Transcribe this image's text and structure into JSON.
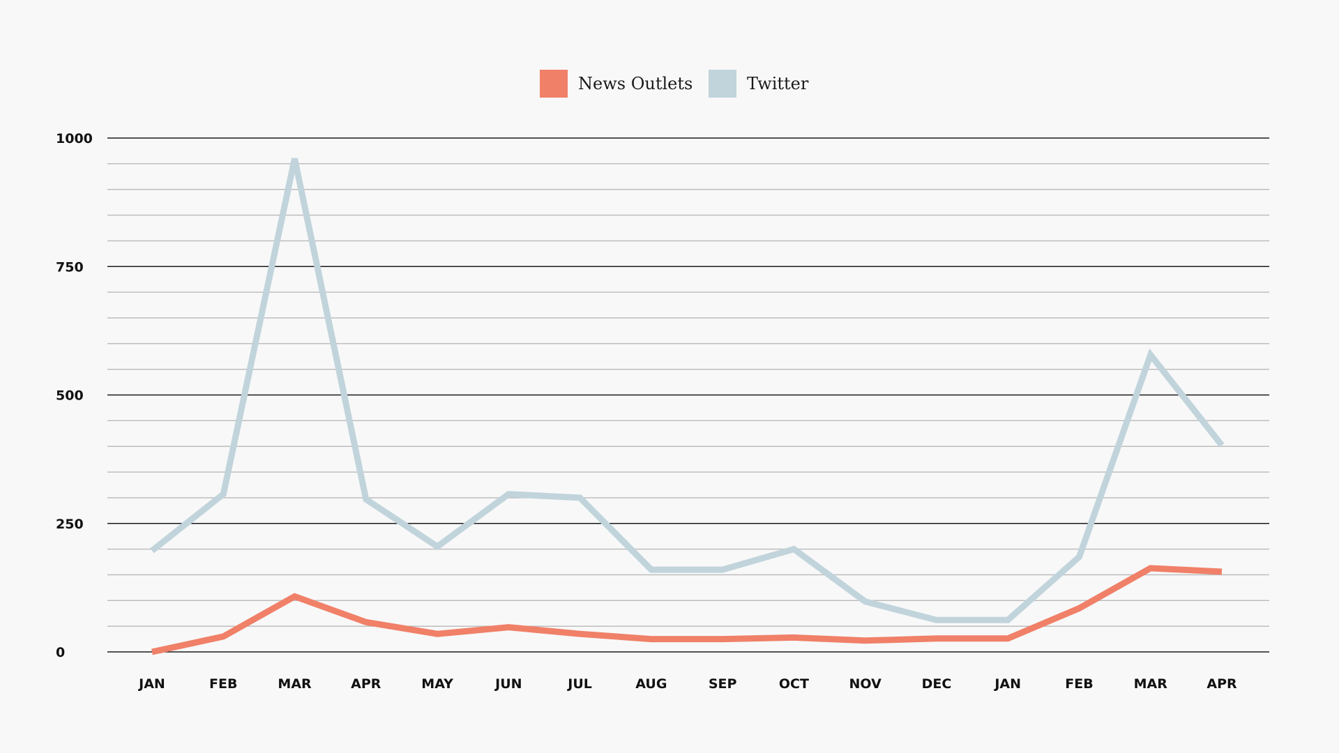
{
  "chart_data": {
    "type": "line",
    "title": "",
    "xlabel": "",
    "ylabel": "",
    "categories": [
      "JAN",
      "FEB",
      "MAR",
      "APR",
      "MAY",
      "JUN",
      "JUL",
      "AUG",
      "SEP",
      "OCT",
      "NOV",
      "DEC",
      "JAN",
      "FEB",
      "MAR",
      "APR"
    ],
    "ylim": [
      0,
      1000
    ],
    "yticks": [
      0,
      250,
      500,
      750,
      1000
    ],
    "y_tick_labels": [
      "0",
      "250",
      "500",
      "750",
      "1000"
    ],
    "minor_grid_step": 50,
    "grid": true,
    "legend_position": "top-center",
    "series": [
      {
        "name": "News Outlets",
        "color": "#f08068",
        "values": [
          0,
          30,
          108,
          58,
          35,
          48,
          35,
          25,
          25,
          28,
          22,
          26,
          26,
          85,
          163,
          156
        ]
      },
      {
        "name": "Twitter",
        "color": "#c1d4dc",
        "values": [
          197,
          307,
          960,
          297,
          205,
          307,
          300,
          160,
          160,
          200,
          98,
          62,
          62,
          185,
          578,
          402
        ]
      }
    ]
  }
}
